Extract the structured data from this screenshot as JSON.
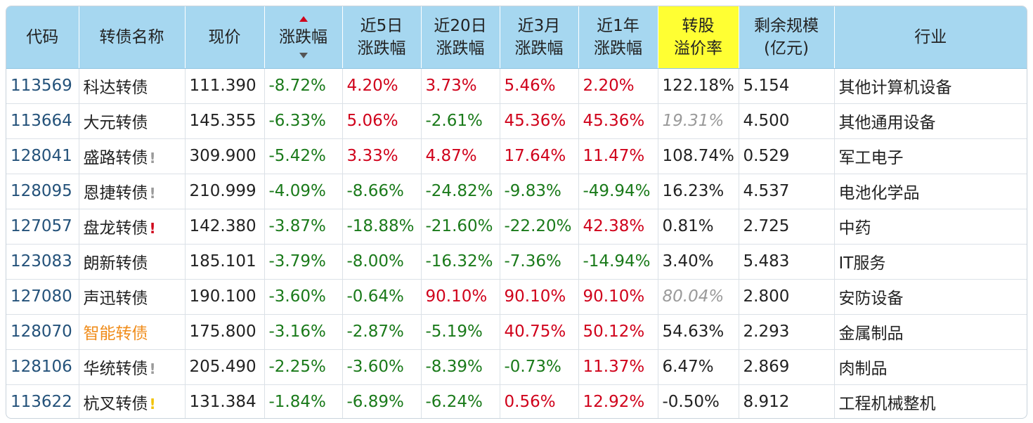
{
  "headers": {
    "code": "代码",
    "name": "转债名称",
    "price": "现价",
    "change": "涨跌幅",
    "d5": [
      "近5日",
      "涨跌幅"
    ],
    "d20": [
      "近20日",
      "涨跌幅"
    ],
    "m3": [
      "近3月",
      "涨跌幅"
    ],
    "y1": [
      "近1年",
      "涨跌幅"
    ],
    "premium": [
      "转股",
      "溢价率"
    ],
    "scale": [
      "剩余规模",
      "(亿元)"
    ],
    "industry": "行业"
  },
  "sort": {
    "column": "change",
    "direction": "asc-icon"
  },
  "colors": {
    "header_bg": "#a6d7f0",
    "highlight_bg": "#ffff33",
    "up": "#d0021b",
    "down": "#1a7a1a",
    "code": "#24527a"
  },
  "rows": [
    {
      "code": "113569",
      "name": "科达转债",
      "mark": "",
      "price": "111.390",
      "change": "-8.72%",
      "d5": "4.20%",
      "d20": "3.73%",
      "m3": "5.46%",
      "y1": "2.20%",
      "premium": "122.18%",
      "scale": "5.154",
      "industry": "其他计算机设备"
    },
    {
      "code": "113664",
      "name": "大元转债",
      "mark": "",
      "price": "145.355",
      "change": "-6.33%",
      "d5": "5.06%",
      "d20": "-2.61%",
      "m3": "45.36%",
      "y1": "45.36%",
      "premium": "19.31%",
      "scale": "4.500",
      "industry": "其他通用设备"
    },
    {
      "code": "128041",
      "name": "盛路转债",
      "mark": "!",
      "price": "309.900",
      "change": "-5.42%",
      "d5": "3.33%",
      "d20": "4.87%",
      "m3": "17.64%",
      "y1": "11.47%",
      "premium": "108.74%",
      "scale": "0.529",
      "industry": "军工电子"
    },
    {
      "code": "128095",
      "name": "恩捷转债",
      "mark": "!",
      "price": "210.999",
      "change": "-4.09%",
      "d5": "-8.66%",
      "d20": "-24.82%",
      "m3": "-9.83%",
      "y1": "-49.94%",
      "premium": "16.23%",
      "scale": "4.537",
      "industry": "电池化学品"
    },
    {
      "code": "127057",
      "name": "盘龙转债",
      "mark": "!",
      "price": "142.380",
      "change": "-3.87%",
      "d5": "-18.88%",
      "d20": "-21.60%",
      "m3": "-22.20%",
      "y1": "42.38%",
      "premium": "0.81%",
      "scale": "2.725",
      "industry": "中药"
    },
    {
      "code": "123083",
      "name": "朗新转债",
      "mark": "",
      "price": "185.101",
      "change": "-3.79%",
      "d5": "-8.00%",
      "d20": "-16.32%",
      "m3": "-7.36%",
      "y1": "-14.94%",
      "premium": "3.40%",
      "scale": "5.483",
      "industry": "IT服务"
    },
    {
      "code": "127080",
      "name": "声迅转债",
      "mark": "",
      "price": "190.100",
      "change": "-3.60%",
      "d5": "-0.64%",
      "d20": "90.10%",
      "m3": "90.10%",
      "y1": "90.10%",
      "premium": "80.04%",
      "scale": "2.800",
      "industry": "安防设备"
    },
    {
      "code": "128070",
      "name": "智能转债",
      "mark": "",
      "price": "175.800",
      "change": "-3.16%",
      "d5": "-2.87%",
      "d20": "-5.19%",
      "m3": "40.75%",
      "y1": "50.12%",
      "premium": "54.63%",
      "scale": "2.293",
      "industry": "金属制品"
    },
    {
      "code": "128106",
      "name": "华统转债",
      "mark": "!",
      "price": "205.490",
      "change": "-2.25%",
      "d5": "-3.60%",
      "d20": "-8.39%",
      "m3": "-0.73%",
      "y1": "11.37%",
      "premium": "6.47%",
      "scale": "2.869",
      "industry": "肉制品"
    },
    {
      "code": "113622",
      "name": "杭叉转债",
      "mark": "!",
      "price": "131.384",
      "change": "-1.84%",
      "d5": "-6.89%",
      "d20": "-6.24%",
      "m3": "0.56%",
      "y1": "12.92%",
      "premium": "-0.50%",
      "scale": "8.912",
      "industry": "工程机械整机"
    }
  ]
}
